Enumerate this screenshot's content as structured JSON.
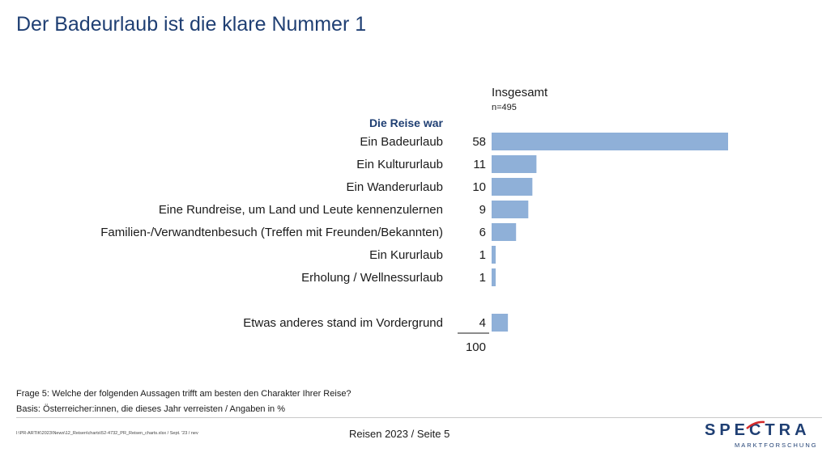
{
  "page": {
    "title": "Der Badeurlaub ist die klare Nummer 1",
    "question": "Frage 5: Welche der folgenden Aussagen trifft am besten den Charakter Ihrer Reise?",
    "basis": "Basis: Österreicher:innen, die dieses Jahr verreisten / Angaben in %",
    "filepath": "I:\\PR-ARTIK\\2023\\News\\12_Reisen\\charts\\52-4732_PR_Reisen_charts.xlsx / Sept. '23 / nev",
    "footer": "Reisen 2023  /  Seite 5",
    "logo_word": "SPECTRA",
    "logo_sub": "MARKTFORSCHUNG"
  },
  "chart_data": {
    "type": "bar",
    "orientation": "horizontal",
    "column_header": "Insgesamt",
    "sample_size": "n=495",
    "group_title": "Die Reise war",
    "categories": [
      "Ein Badeurlaub",
      "Ein Kultururlaub",
      "Ein Wanderurlaub",
      "Eine Rundreise, um Land und Leute kennenzulernen",
      "Familien-/Verwandtenbesuch (Treffen mit Freunden/Bekannten)",
      "Ein Kururlaub",
      "Erholung / Wellnessurlaub",
      "Etwas anderes stand im Vordergrund"
    ],
    "values": [
      58,
      11,
      10,
      9,
      6,
      1,
      1,
      4
    ],
    "total": "100",
    "xlim": [
      0,
      100
    ],
    "bar_color": "#8fb0d8",
    "grid": false,
    "legend": "none"
  },
  "colors": {
    "title": "#1f3f73",
    "logo_accent": "#d42a2a"
  }
}
